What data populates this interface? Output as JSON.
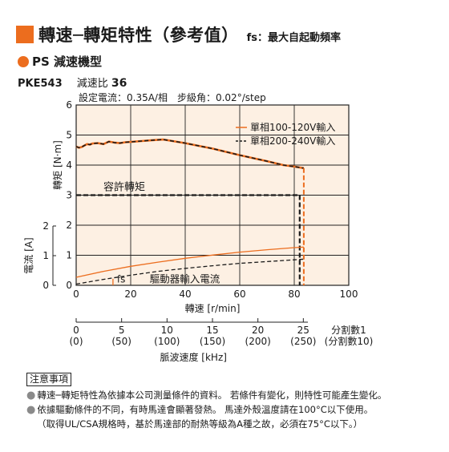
{
  "header": {
    "title": "轉速─轉矩特性（參考值）",
    "fs_note": "fs：最大自起動頻率"
  },
  "subheader": {
    "series_type": "PS 減速機型",
    "model": "PKE543",
    "ratio_label": "減速比",
    "ratio_value": "36"
  },
  "settings_line": "設定電流：0.35A/相　步級角：0.02°/step",
  "chart_data": {
    "type": "line",
    "xlabel": "轉速 [r/min]",
    "xlim": [
      0,
      100
    ],
    "xticks": [
      "0",
      "20",
      "40",
      "60",
      "80",
      "100"
    ],
    "torque_axis": {
      "label": "轉矩 [N·m]",
      "ylim": [
        0,
        6
      ],
      "ticks": [
        "0",
        "1",
        "2",
        "3",
        "4",
        "5",
        "6"
      ]
    },
    "current_axis": {
      "label": "電流 [A]",
      "ylim": [
        0,
        2
      ],
      "ticks": [
        "0",
        "1",
        "2"
      ]
    },
    "series": [
      {
        "name": "單相100-120V輸入",
        "style": "solid",
        "color": "#ec6d1e",
        "x": [
          0,
          1,
          2,
          3,
          4,
          5,
          6,
          8,
          10,
          12,
          14,
          16,
          18,
          20,
          24,
          28,
          32,
          40,
          50,
          60,
          70,
          76,
          80,
          83.5
        ],
        "y": [
          4.62,
          4.58,
          4.6,
          4.65,
          4.7,
          4.68,
          4.72,
          4.73,
          4.7,
          4.78,
          4.75,
          4.73,
          4.76,
          4.77,
          4.8,
          4.83,
          4.85,
          4.73,
          4.55,
          4.33,
          4.13,
          4.0,
          3.95,
          3.9
        ]
      },
      {
        "name": "單相200-240V輸入",
        "style": "dashed",
        "color": "#1a1a1a",
        "x": [
          0,
          1,
          2,
          3,
          4,
          5,
          6,
          8,
          10,
          12,
          14,
          16,
          18,
          20,
          24,
          28,
          32,
          40,
          50,
          60,
          70,
          76,
          80,
          83.5
        ],
        "y": [
          4.62,
          4.58,
          4.6,
          4.65,
          4.7,
          4.68,
          4.72,
          4.73,
          4.7,
          4.78,
          4.75,
          4.73,
          4.76,
          4.77,
          4.8,
          4.83,
          4.85,
          4.73,
          4.55,
          4.33,
          4.13,
          4.0,
          3.95,
          3.9
        ]
      }
    ],
    "permissible_torque": {
      "label": "容許轉矩",
      "value": 3.0
    },
    "current_series": [
      {
        "name": "單相100-120V輸入",
        "style": "solid",
        "color": "#ec6d1e",
        "x": [
          0,
          10,
          20,
          30,
          40,
          50,
          60,
          70,
          80,
          83.5
        ],
        "y": [
          0.27,
          0.47,
          0.64,
          0.78,
          0.91,
          1.02,
          1.12,
          1.2,
          1.27,
          1.29
        ]
      },
      {
        "name": "單相200-240V輸入",
        "style": "dashed",
        "color": "#1a1a1a",
        "x": [
          0,
          10,
          20,
          30,
          40,
          50,
          60,
          70,
          80,
          83.5
        ],
        "y": [
          0.04,
          0.2,
          0.34,
          0.47,
          0.57,
          0.66,
          0.74,
          0.8,
          0.86,
          0.88
        ]
      }
    ],
    "current_label": "驅動器輸入電流",
    "fs": {
      "label": "fs",
      "x": 13.5
    },
    "pulse_axis": {
      "label": "脈波速度 [kHz]",
      "division1_label": "分割數1",
      "division10_label": "(分割數10)",
      "ticks": [
        {
          "speed": 0,
          "div1": "0",
          "div10": "(0)"
        },
        {
          "speed": 16.67,
          "div1": "5",
          "div10": "(50)"
        },
        {
          "speed": 33.33,
          "div1": "10",
          "div10": "(100)"
        },
        {
          "speed": 50,
          "div1": "15",
          "div10": "(150)"
        },
        {
          "speed": 66.67,
          "div1": "20",
          "div10": "(200)"
        },
        {
          "speed": 83.33,
          "div1": "25",
          "div10": "(250)"
        }
      ]
    },
    "grid": true,
    "legend_position": "top-right",
    "plot_background": "#fdf0e3",
    "accent_color": "#ec6d1e"
  },
  "notes": {
    "title": "注意事項",
    "items": [
      "轉速─轉矩特性為依據本公司測量條件的資料。 若條件有變化，則特性可能產生變化。",
      "依據驅動條件的不同，有時馬達會顯著發熱。 馬達外殼溫度請在100°C以下使用。"
    ],
    "continuation": "（取得UL/CSA規格時，基於馬達部的耐熱等級為A種之故，必須在75°C以下。）"
  }
}
